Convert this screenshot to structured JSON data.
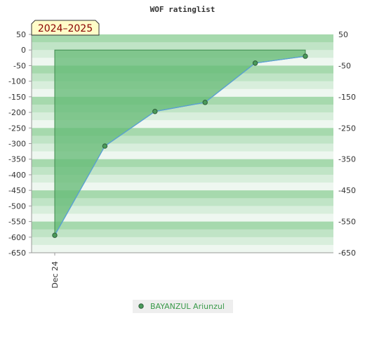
{
  "chart_data": {
    "type": "area",
    "title": "WOF ratinglist",
    "period_badge": "2024–2025",
    "x_categories": [
      "Dec 24"
    ],
    "ylim": [
      -650,
      50
    ],
    "y_ticks_left": [
      "50",
      "0",
      "-50",
      "-100",
      "-150",
      "-200",
      "-250",
      "-300",
      "-350",
      "-400",
      "-450",
      "-500",
      "-550",
      "-600",
      "-650"
    ],
    "y_ticks_right": [
      "50",
      "-50",
      "-150",
      "-250",
      "-350",
      "-450",
      "-550",
      "-650"
    ],
    "series": [
      {
        "name": "BAYANZUL Ariunzul",
        "values": [
          -594,
          -308,
          -197,
          -168,
          -42,
          -20
        ]
      }
    ],
    "colors": {
      "fill": "#66bb77",
      "line": "#5aa0d8",
      "marker": "#4a9a5a",
      "band_dark": "#a6d9ad",
      "band_light": "#eef7f0",
      "badge_bg": "#fffcc8",
      "badge_text": "#8b0000",
      "legend_text": "#3a9a4a"
    },
    "grid": true,
    "legend_position": "bottom-center"
  }
}
